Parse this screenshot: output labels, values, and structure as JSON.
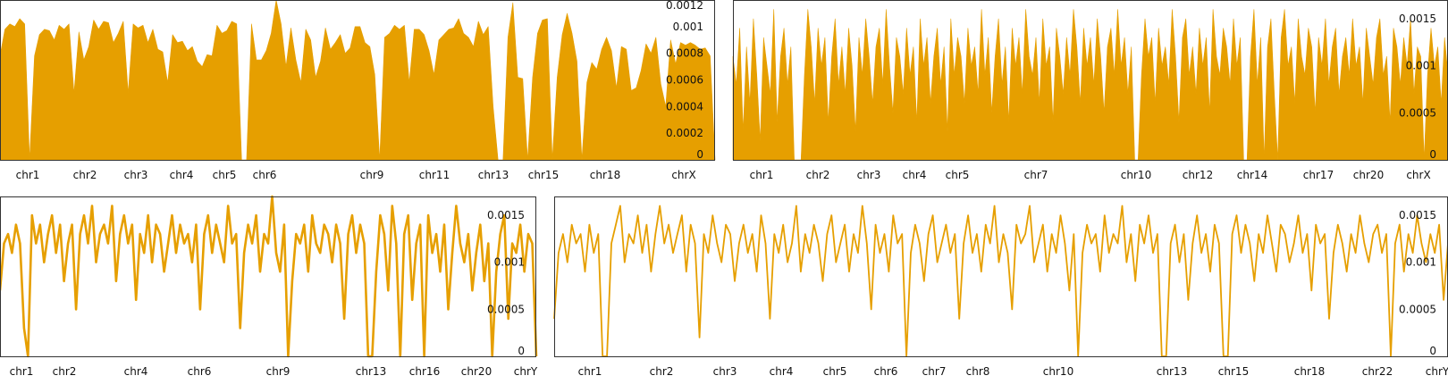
{
  "chart_data": [
    {
      "type": "area",
      "ylim": [
        0,
        0.0012
      ],
      "yticks": [
        0,
        0.0002,
        0.0004,
        0.0006,
        0.0008,
        0.001,
        0.0012
      ],
      "ytick_labels": [
        "0",
        "0.0002",
        "0.0004",
        "0.0006",
        "0.0008",
        "0.001",
        "0.0012"
      ],
      "xlabels": [
        "chr1",
        "chr2",
        "chr3",
        "chr4",
        "chr5",
        "chr6",
        "chr9",
        "chr11",
        "chr13",
        "chr15",
        "chr18",
        "chrX"
      ],
      "values": [
        0.00078,
        0.00098,
        0.00102,
        0.001,
        0.00106,
        0.00102,
        0.0,
        0.00078,
        0.00094,
        0.00098,
        0.00097,
        0.0009,
        0.00101,
        0.00098,
        0.00102,
        0.0005,
        0.00096,
        0.00075,
        0.00085,
        0.00105,
        0.00098,
        0.00104,
        0.00103,
        0.00088,
        0.00095,
        0.00104,
        0.0005,
        0.00102,
        0.00099,
        0.00101,
        0.00088,
        0.00098,
        0.00083,
        0.00081,
        0.00058,
        0.00094,
        0.00088,
        0.00089,
        0.00082,
        0.00085,
        0.00074,
        0.0007,
        0.00079,
        0.00078,
        0.00101,
        0.00095,
        0.00097,
        0.00104,
        0.00102,
        0.0,
        0.0,
        0.00102,
        0.00075,
        0.00075,
        0.00082,
        0.00095,
        0.0012,
        0.00102,
        0.0007,
        0.00099,
        0.00075,
        0.00058,
        0.00098,
        0.0009,
        0.00062,
        0.00074,
        0.00099,
        0.00083,
        0.00088,
        0.00094,
        0.0008,
        0.00084,
        0.001,
        0.001,
        0.00088,
        0.00085,
        0.00064,
        0.0,
        0.00092,
        0.00095,
        0.00101,
        0.00098,
        0.00101,
        0.00058,
        0.00098,
        0.00098,
        0.00094,
        0.00082,
        0.00064,
        0.0009,
        0.00094,
        0.00098,
        0.00099,
        0.00106,
        0.00095,
        0.00092,
        0.00085,
        0.00104,
        0.00094,
        0.001,
        0.0004,
        0.0,
        0.0,
        0.00092,
        0.00118,
        0.00062,
        0.00061,
        0.0,
        0.00062,
        0.00095,
        0.00105,
        0.00106,
        0.0,
        0.00062,
        0.00094,
        0.0011,
        0.00095,
        0.00074,
        0.0,
        0.00058,
        0.00073,
        0.00068,
        0.00083,
        0.00092,
        0.00082,
        0.00054,
        0.00085,
        0.00083,
        0.00052,
        0.00054,
        0.00067,
        0.00087,
        0.0008,
        0.00092,
        0.00057,
        0.0004,
        0.0009,
        0.00072,
        0.00088,
        0.00086,
        0.00088,
        0.00086,
        0.00083,
        0.00084,
        0.00078,
        0.0
      ]
    },
    {
      "type": "area",
      "ylim": [
        0,
        0.0017
      ],
      "yticks": [
        0,
        0.0005,
        0.001,
        0.0015
      ],
      "ytick_labels": [
        "0",
        "0.0005",
        "0.001",
        "0.0015"
      ],
      "xlabels": [
        "chr1",
        "chr2",
        "chr3",
        "chr4",
        "chr5",
        "chr7",
        "chr10",
        "chr12",
        "chr14",
        "chr17",
        "chr20",
        "chrX"
      ],
      "values": [
        0.0011,
        0.0008,
        0.0014,
        0.0003,
        0.0012,
        0.0006,
        0.0015,
        0.0009,
        0.0002,
        0.0013,
        0.001,
        0.0007,
        0.0016,
        0.0004,
        0.0011,
        0.0014,
        0.0008,
        0.0012,
        0.0,
        0.0,
        0.0,
        0.0009,
        0.0016,
        0.0012,
        0.0006,
        0.0014,
        0.001,
        0.0013,
        0.0004,
        0.0011,
        0.0015,
        0.0008,
        0.0012,
        0.0007,
        0.0014,
        0.001,
        0.0003,
        0.0013,
        0.0009,
        0.0015,
        0.0011,
        0.0006,
        0.0012,
        0.0014,
        0.0008,
        0.0016,
        0.001,
        0.0005,
        0.0013,
        0.0011,
        0.0007,
        0.0014,
        0.0009,
        0.0012,
        0.0004,
        0.0015,
        0.001,
        0.0013,
        0.0006,
        0.0011,
        0.0014,
        0.0008,
        0.0012,
        0.0003,
        0.0015,
        0.0009,
        0.0013,
        0.0011,
        0.0006,
        0.0014,
        0.001,
        0.0012,
        0.0007,
        0.0016,
        0.0009,
        0.0013,
        0.0005,
        0.0011,
        0.0015,
        0.0008,
        0.0012,
        0.0004,
        0.0014,
        0.001,
        0.0013,
        0.0007,
        0.0016,
        0.0011,
        0.0009,
        0.0013,
        0.0006,
        0.0015,
        0.001,
        0.0012,
        0.0004,
        0.0014,
        0.0011,
        0.0007,
        0.0013,
        0.0009,
        0.0016,
        0.0012,
        0.0006,
        0.0014,
        0.001,
        0.0013,
        0.0008,
        0.0015,
        0.0011,
        0.0005,
        0.0012,
        0.0014,
        0.0009,
        0.0016,
        0.001,
        0.0013,
        0.0007,
        0.0012,
        0.0,
        0.0,
        0.0009,
        0.0015,
        0.0011,
        0.0013,
        0.0006,
        0.0014,
        0.001,
        0.0012,
        0.0008,
        0.0016,
        0.0011,
        0.0004,
        0.0013,
        0.0015,
        0.0009,
        0.0012,
        0.0007,
        0.0014,
        0.001,
        0.0013,
        0.0005,
        0.0016,
        0.0011,
        0.0009,
        0.0014,
        0.0012,
        0.0008,
        0.0015,
        0.001,
        0.0013,
        0.0,
        0.0,
        0.0011,
        0.0016,
        0.0008,
        0.0013,
        0.0,
        0.0012,
        0.0015,
        0.0007,
        0.0,
        0.0013,
        0.0016,
        0.001,
        0.0012,
        0.0006,
        0.0015,
        0.0011,
        0.0009,
        0.0014,
        0.0012,
        0.0005,
        0.0013,
        0.001,
        0.0015,
        0.0008,
        0.0012,
        0.0014,
        0.0007,
        0.0011,
        0.0013,
        0.0009,
        0.0015,
        0.001,
        0.0012,
        0.0006,
        0.0014,
        0.0011,
        0.0008,
        0.0013,
        0.0015,
        0.0009,
        0.0011,
        0.0004,
        0.0014,
        0.0012,
        0.0008,
        0.0013,
        0.001,
        0.0015,
        0.0007,
        0.0012,
        0.0011,
        0.0,
        0.0009,
        0.0014,
        0.001,
        0.0012,
        0.0006,
        0.0013,
        0.0009
      ]
    },
    {
      "type": "line",
      "ylim": [
        0,
        0.0017
      ],
      "yticks": [
        0,
        0.0005,
        0.001,
        0.0015
      ],
      "ytick_labels": [
        "0",
        "0.0005",
        "0.001",
        "0.0015"
      ],
      "xlabels": [
        "chr1",
        "chr2",
        "chr4",
        "chr6",
        "chr9",
        "chr13",
        "chr16",
        "chr20",
        "chrY"
      ],
      "values": [
        0.0007,
        0.0012,
        0.0013,
        0.0011,
        0.0014,
        0.0012,
        0.0003,
        0.0,
        0.0015,
        0.0012,
        0.0014,
        0.001,
        0.0013,
        0.0015,
        0.0011,
        0.0014,
        0.0008,
        0.0012,
        0.0014,
        0.0005,
        0.0013,
        0.0015,
        0.0012,
        0.0016,
        0.001,
        0.0013,
        0.0014,
        0.0012,
        0.0016,
        0.0008,
        0.0013,
        0.0015,
        0.0012,
        0.0014,
        0.0006,
        0.0013,
        0.0011,
        0.0015,
        0.001,
        0.0014,
        0.0013,
        0.0009,
        0.0012,
        0.0015,
        0.0011,
        0.0014,
        0.0012,
        0.0013,
        0.001,
        0.0014,
        0.0005,
        0.0013,
        0.0015,
        0.0011,
        0.0014,
        0.0012,
        0.001,
        0.0016,
        0.0012,
        0.0013,
        0.0003,
        0.0011,
        0.0014,
        0.0012,
        0.0015,
        0.0009,
        0.0013,
        0.0012,
        0.0017,
        0.0011,
        0.0009,
        0.0014,
        0.0,
        0.0008,
        0.0013,
        0.0012,
        0.0014,
        0.0009,
        0.0015,
        0.0012,
        0.0011,
        0.0014,
        0.0013,
        0.001,
        0.0014,
        0.0012,
        0.0004,
        0.0013,
        0.0015,
        0.0011,
        0.0014,
        0.0012,
        0.0,
        0.0,
        0.0009,
        0.0015,
        0.0013,
        0.0007,
        0.0016,
        0.0012,
        0.0,
        0.0013,
        0.0015,
        0.0006,
        0.0012,
        0.0014,
        0.0,
        0.0015,
        0.0011,
        0.0013,
        0.0009,
        0.0014,
        0.0005,
        0.0011,
        0.0016,
        0.0012,
        0.001,
        0.0013,
        0.0007,
        0.0011,
        0.0014,
        0.0008,
        0.0012,
        0.0,
        0.0009,
        0.0013,
        0.0015,
        0.0004,
        0.0012,
        0.0011,
        0.0014,
        0.0009,
        0.0013,
        0.0012,
        0.0
      ]
    },
    {
      "type": "line",
      "ylim": [
        0,
        0.0017
      ],
      "yticks": [
        0,
        0.0005,
        0.001,
        0.0015
      ],
      "ytick_labels": [
        "0",
        "0.0005",
        "0.001",
        "0.0015"
      ],
      "xlabels": [
        "chr1",
        "chr2",
        "chr3",
        "chr4",
        "chr5",
        "chr6",
        "chr7",
        "chr8",
        "chr10",
        "chr13",
        "chr15",
        "chr18",
        "chr22",
        "chrY"
      ],
      "values": [
        0.0004,
        0.0011,
        0.0013,
        0.001,
        0.0014,
        0.0012,
        0.0013,
        0.0009,
        0.0014,
        0.0011,
        0.0013,
        0.0,
        0.0,
        0.0012,
        0.0014,
        0.0016,
        0.001,
        0.0013,
        0.0012,
        0.0015,
        0.0011,
        0.0014,
        0.0009,
        0.0013,
        0.0016,
        0.0012,
        0.0014,
        0.0011,
        0.0013,
        0.0015,
        0.0009,
        0.0014,
        0.0012,
        0.0002,
        0.0013,
        0.0011,
        0.0015,
        0.0012,
        0.001,
        0.0014,
        0.0013,
        0.0008,
        0.0012,
        0.0014,
        0.0011,
        0.0013,
        0.0009,
        0.0015,
        0.0012,
        0.0004,
        0.0013,
        0.0011,
        0.0014,
        0.001,
        0.0012,
        0.0016,
        0.0009,
        0.0013,
        0.0011,
        0.0014,
        0.0012,
        0.0008,
        0.0013,
        0.0015,
        0.001,
        0.0012,
        0.0014,
        0.0009,
        0.0013,
        0.0011,
        0.0016,
        0.0012,
        0.0005,
        0.0014,
        0.0011,
        0.0013,
        0.0009,
        0.0015,
        0.0012,
        0.0013,
        0.0,
        0.0011,
        0.0014,
        0.0012,
        0.0008,
        0.0013,
        0.0015,
        0.001,
        0.0012,
        0.0014,
        0.0011,
        0.0013,
        0.0004,
        0.0012,
        0.0015,
        0.0011,
        0.0013,
        0.0009,
        0.0014,
        0.0012,
        0.0016,
        0.001,
        0.0013,
        0.0011,
        0.0005,
        0.0014,
        0.0012,
        0.0013,
        0.0016,
        0.001,
        0.0012,
        0.0014,
        0.0009,
        0.0013,
        0.0011,
        0.0015,
        0.0012,
        0.0007,
        0.0013,
        0.0,
        0.0011,
        0.0014,
        0.0012,
        0.0013,
        0.0009,
        0.0015,
        0.0011,
        0.0013,
        0.0012,
        0.0016,
        0.001,
        0.0013,
        0.0008,
        0.0014,
        0.0012,
        0.0015,
        0.0011,
        0.0013,
        0.0,
        0.0,
        0.0012,
        0.0014,
        0.001,
        0.0013,
        0.0006,
        0.0012,
        0.0015,
        0.0011,
        0.0013,
        0.0009,
        0.0014,
        0.0012,
        0.0,
        0.0,
        0.0013,
        0.0015,
        0.0011,
        0.0014,
        0.0012,
        0.0008,
        0.0013,
        0.0011,
        0.0015,
        0.0012,
        0.0009,
        0.0014,
        0.0013,
        0.001,
        0.0012,
        0.0015,
        0.0011,
        0.0013,
        0.0007,
        0.0014,
        0.0012,
        0.0013,
        0.0004,
        0.0011,
        0.0014,
        0.0012,
        0.0009,
        0.0013,
        0.0011,
        0.0015,
        0.0012,
        0.001,
        0.0013,
        0.0014,
        0.0011,
        0.0013,
        0.0,
        0.0012,
        0.0014,
        0.0009,
        0.0013,
        0.0011,
        0.0015,
        0.0012,
        0.001,
        0.0013,
        0.0011,
        0.0014,
        0.0006,
        0.0012
      ]
    }
  ]
}
